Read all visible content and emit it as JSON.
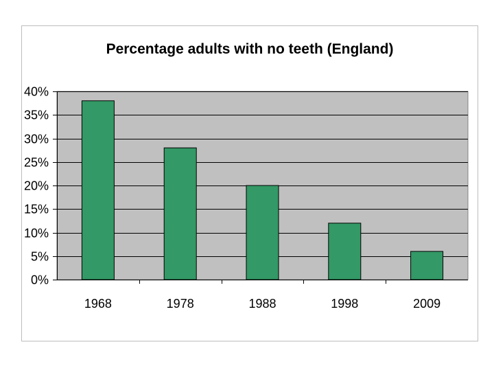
{
  "chart_data": {
    "type": "bar",
    "title": "Percentage adults with no teeth (England)",
    "xlabel": "",
    "ylabel": "",
    "categories": [
      "1968",
      "1978",
      "1988",
      "1998",
      "2009"
    ],
    "values": [
      38,
      28,
      20,
      12,
      6
    ],
    "y_unit": "%",
    "ylim": [
      0,
      40
    ],
    "y_ticks": [
      0,
      5,
      10,
      15,
      20,
      25,
      30,
      35,
      40
    ],
    "y_tick_labels": [
      "0%",
      "5%",
      "10%",
      "15%",
      "20%",
      "25%",
      "30%",
      "35%",
      "40%"
    ],
    "grid": true,
    "legend": "none",
    "colors": {
      "bar_fill": "#339966",
      "bar_stroke": "#000000",
      "plot_background": "#c0c0c0",
      "gridline": "#000000"
    }
  }
}
